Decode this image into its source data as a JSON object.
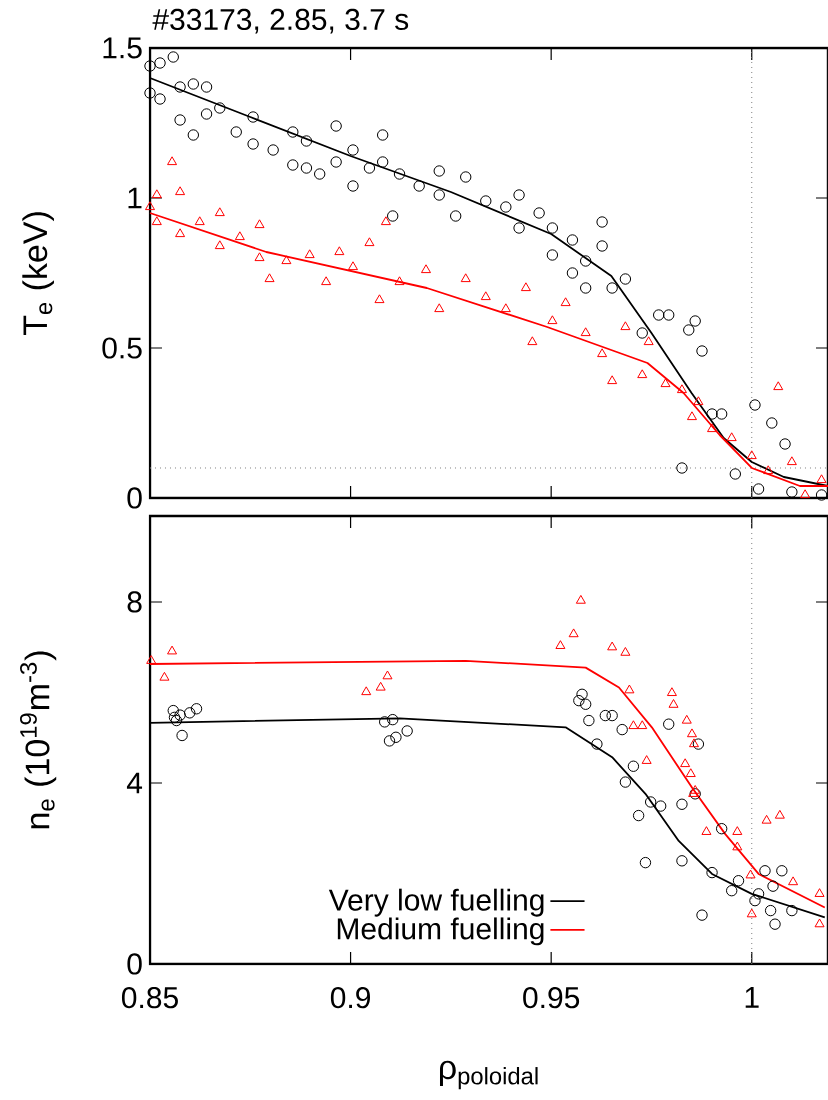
{
  "chart_data": [
    {
      "type": "scatter",
      "title": "#33173, 2.85, 3.7 s",
      "ylabel": "T$_{e}$ (keV)",
      "xlim": [
        0.85,
        1.019
      ],
      "ylim": [
        0,
        1.5
      ],
      "xticks": [
        0.85,
        0.9,
        0.95,
        1
      ],
      "yticks": [
        0,
        0.5,
        1,
        1.5
      ],
      "tick_labels": "y",
      "grid": false,
      "legend": false,
      "ref_lines": [
        {
          "axis": "y",
          "value": 0.1,
          "color": "#808080",
          "line_style": "dotted"
        },
        {
          "axis": "x",
          "value": 1,
          "color": "#808080",
          "line_style": "dotted"
        }
      ],
      "series": [
        {
          "color": "#000000",
          "marker": "circle",
          "x": [
            0.85,
            0.85,
            0.8525,
            0.8525,
            0.8558,
            0.8575,
            0.8575,
            0.8608,
            0.8608,
            0.8641,
            0.8641,
            0.8674,
            0.8715,
            0.8757,
            0.8757,
            0.8807,
            0.8856,
            0.8856,
            0.889,
            0.889,
            0.8923,
            0.8964,
            0.8964,
            0.9006,
            0.9006,
            0.9047,
            0.908,
            0.908,
            0.9105,
            0.9122,
            0.9171,
            0.9221,
            0.9221,
            0.9262,
            0.9287,
            0.9337,
            0.9387,
            0.942,
            0.942,
            0.947,
            0.9503,
            0.9503,
            0.9553,
            0.9553,
            0.9586,
            0.9586,
            0.9627,
            0.9627,
            0.9652,
            0.9685,
            0.9727,
            0.9768,
            0.9793,
            0.9826,
            0.9843,
            0.9859,
            0.9876,
            0.9901,
            0.9925,
            0.9959,
            1.0008,
            1.0017,
            1.005,
            1.0083,
            1.01,
            1.0174
          ],
          "values": [
            1.44,
            1.35,
            1.45,
            1.33,
            1.47,
            1.37,
            1.26,
            1.21,
            1.38,
            1.37,
            1.28,
            1.3,
            1.22,
            1.27,
            1.18,
            1.16,
            1.22,
            1.11,
            1.19,
            1.1,
            1.08,
            1.24,
            1.12,
            1.16,
            1.04,
            1.1,
            1.21,
            1.12,
            0.94,
            1.08,
            1.04,
            1.09,
            1.01,
            0.94,
            1.07,
            0.99,
            0.97,
            1.01,
            0.9,
            0.95,
            0.9,
            0.81,
            0.86,
            0.75,
            0.79,
            0.7,
            0.92,
            0.84,
            0.7,
            0.73,
            0.55,
            0.61,
            0.61,
            0.1,
            0.56,
            0.59,
            0.49,
            0.28,
            0.28,
            0.08,
            0.31,
            0.03,
            0.25,
            0.18,
            0.02,
            0.01
          ]
        },
        {
          "color": "#ff0000",
          "marker": "triangle",
          "x": [
            0.85,
            0.8517,
            0.8517,
            0.8555,
            0.8575,
            0.8575,
            0.8624,
            0.8674,
            0.8674,
            0.8724,
            0.8773,
            0.8773,
            0.8798,
            0.884,
            0.8898,
            0.8939,
            0.8972,
            0.9006,
            0.9047,
            0.9072,
            0.9088,
            0.9122,
            0.9188,
            0.9221,
            0.9287,
            0.9337,
            0.9387,
            0.9437,
            0.9453,
            0.9503,
            0.9536,
            0.9586,
            0.9627,
            0.9652,
            0.9685,
            0.9727,
            0.9743,
            0.9785,
            0.9826,
            0.9851,
            0.9867,
            0.9901,
            0.995,
            1.0,
            1.0041,
            1.0066,
            1.01,
            1.0133,
            1.0174
          ],
          "values": [
            0.97,
            1.01,
            0.92,
            1.12,
            1.02,
            0.88,
            0.92,
            0.95,
            0.84,
            0.87,
            0.91,
            0.8,
            0.73,
            0.79,
            0.81,
            0.72,
            0.82,
            0.77,
            0.85,
            0.66,
            0.92,
            0.72,
            0.76,
            0.63,
            0.73,
            0.67,
            0.63,
            0.7,
            0.52,
            0.59,
            0.65,
            0.55,
            0.48,
            0.39,
            0.57,
            0.41,
            0.52,
            0.38,
            0.36,
            0.27,
            0.32,
            0.23,
            0.2,
            0.14,
            0.09,
            0.37,
            0.12,
            0.01,
            0.06
          ]
        },
        {
          "type": "line",
          "color": "#000000",
          "marker": "none",
          "line_style": "solid",
          "x": [
            0.85,
            0.875,
            0.9,
            0.925,
            0.95,
            0.965,
            0.975,
            0.985,
            0.993,
            1.0,
            1.008,
            1.019
          ],
          "values": [
            1.4,
            1.27,
            1.14,
            1.02,
            0.88,
            0.74,
            0.55,
            0.35,
            0.2,
            0.12,
            0.07,
            0.04
          ]
        },
        {
          "type": "line",
          "color": "#ff0000",
          "marker": "none",
          "line_style": "solid",
          "x": [
            0.85,
            0.879,
            0.919,
            0.949,
            0.974,
            0.983,
            0.992,
            1.0,
            1.012,
            1.019
          ],
          "values": [
            0.95,
            0.82,
            0.7,
            0.57,
            0.45,
            0.35,
            0.21,
            0.1,
            0.04,
            0.04
          ]
        }
      ]
    },
    {
      "type": "scatter",
      "xlabel": "ρ$_{poloidal}$",
      "ylabel": "n$_{e}$ (10$^{19}$m$^{-3}$)",
      "xlim": [
        0.85,
        1.019
      ],
      "ylim": [
        0,
        9.9
      ],
      "xticks": [
        0.85,
        0.9,
        0.95,
        1
      ],
      "yticks": [
        0,
        4,
        8
      ],
      "grid": false,
      "legend": "bottom",
      "ref_lines": [
        {
          "axis": "x",
          "value": 1,
          "color": "#808080",
          "line_style": "dotted"
        }
      ],
      "series": [
        {
          "color": "#000000",
          "marker": "circle",
          "x": [
            0.8558,
            0.8566,
            0.8575,
            0.858,
            0.8561,
            0.8599,
            0.8616,
            0.9085,
            0.9105,
            0.9097,
            0.9113,
            0.9141,
            0.9577,
            0.9569,
            0.9586,
            0.9594,
            0.9614,
            0.9635,
            0.9652,
            0.9677,
            0.9685,
            0.9705,
            0.9718,
            0.9735,
            0.9748,
            0.9773,
            0.9793,
            0.9826,
            0.9826,
            0.9859,
            0.9867,
            0.9876,
            0.9901,
            0.9925,
            0.995,
            0.9967,
            1.0008,
            1.0017,
            1.0033,
            1.0047,
            1.0053,
            1.0058,
            1.0075,
            1.01
          ],
          "values": [
            5.6,
            5.38,
            5.5,
            5.05,
            5.45,
            5.55,
            5.64,
            5.35,
            5.4,
            4.93,
            5.01,
            5.15,
            5.96,
            5.82,
            5.74,
            5.38,
            4.86,
            5.49,
            5.49,
            5.18,
            4.02,
            4.37,
            3.28,
            2.24,
            3.58,
            3.49,
            5.3,
            3.53,
            2.28,
            3.76,
            4.86,
            1.08,
            2.02,
            2.99,
            1.62,
            1.84,
            1.4,
            1.55,
            2.06,
            1.18,
            1.72,
            0.88,
            2.06,
            1.18
          ]
        },
        {
          "color": "#ff0000",
          "marker": "triangle",
          "x": [
            0.8503,
            0.8536,
            0.8555,
            0.9039,
            0.9075,
            0.9092,
            0.9523,
            0.9556,
            0.9574,
            0.9652,
            0.9685,
            0.9695,
            0.9705,
            0.9727,
            0.9738,
            0.9801,
            0.9805,
            0.9838,
            0.9851,
            0.9856,
            0.9834,
            0.9848,
            0.9854,
            0.9859,
            0.9887,
            0.9964,
            0.9964,
            0.9997,
            1.0,
            1.0037,
            1.007,
            1.0103,
            1.0169,
            1.0169
          ],
          "values": [
            6.7,
            6.33,
            6.91,
            6.01,
            6.11,
            6.36,
            7.03,
            7.29,
            8.03,
            7.0,
            6.88,
            6.05,
            5.26,
            5.26,
            4.49,
            5.99,
            5.73,
            5.38,
            5.08,
            4.86,
            4.42,
            4.2,
            3.76,
            3.83,
            2.92,
            2.92,
            2.58,
            1.96,
            1.1,
            3.17,
            3.28,
            1.81,
            1.55,
            0.88
          ]
        },
        {
          "type": "line",
          "name": "Very low fuelling",
          "color": "#000000",
          "marker": "none",
          "line_style": "solid",
          "x": [
            0.85,
            0.9122,
            0.9536,
            0.9652,
            0.9735,
            0.9818,
            0.9901,
            1.0,
            1.0182
          ],
          "values": [
            5.33,
            5.43,
            5.23,
            4.57,
            3.76,
            2.72,
            1.99,
            1.55,
            1.03
          ]
        },
        {
          "type": "line",
          "name": "Medium fuelling",
          "color": "#ff0000",
          "marker": "none",
          "line_style": "solid",
          "x": [
            0.85,
            0.9287,
            0.9586,
            0.9669,
            0.9751,
            0.9851,
            0.9934,
            1.0017,
            1.0182
          ],
          "values": [
            6.63,
            6.7,
            6.55,
            6.11,
            5.23,
            3.9,
            2.87,
            1.99,
            1.25
          ]
        }
      ]
    }
  ]
}
